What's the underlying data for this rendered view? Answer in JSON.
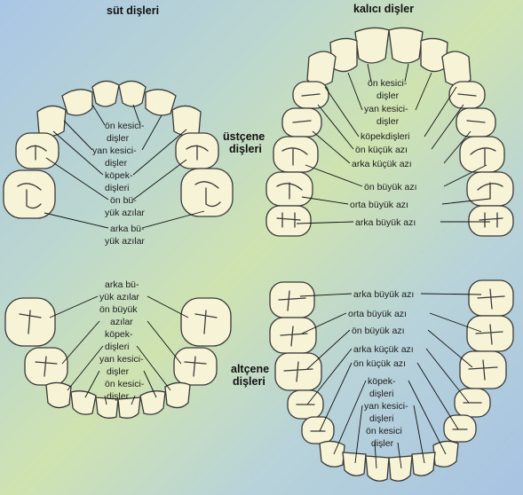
{
  "colors": {
    "tooth": "#f6f3d6",
    "outline": "#3a3a3a",
    "background": "#bcd7cf"
  },
  "headers": {
    "primary": "süt dişleri",
    "permanent": "kalıcı dişler",
    "upper": [
      "üstçene",
      "dişleri"
    ],
    "lower": [
      "altçene",
      "dişleri"
    ]
  },
  "primary_upper_labels": [
    "ön kesici-",
    "dişler",
    "yan kesici-",
    "dişler",
    "köpek-",
    "dişleri",
    "ön bü-",
    "yük azılar",
    "arka bü-",
    "yük azılar"
  ],
  "primary_lower_labels": [
    "arka bü-",
    "yük azılar",
    "ön büyük",
    "azılar",
    "köpek-",
    "dişleri",
    "yan kesici-",
    "dişler",
    "ön kesici-",
    "dişler"
  ],
  "perm_upper_labels": [
    "ön kesici-",
    "dişler",
    "yan kesici-",
    "dişler",
    "köpekdişleri",
    "ön küçük azı",
    "arka küçük azı",
    "ön büyük azı",
    "orta büyük azı",
    "arka büyük azı"
  ],
  "perm_lower_labels": [
    "arka büyük azı",
    "orta büyük azı",
    "ön büyük azı",
    "arka küçük azı",
    "ön küçük azı",
    "köpek-",
    "dişleri",
    "yan kesici-",
    "dişleri",
    "ön kesici",
    "dişler"
  ]
}
